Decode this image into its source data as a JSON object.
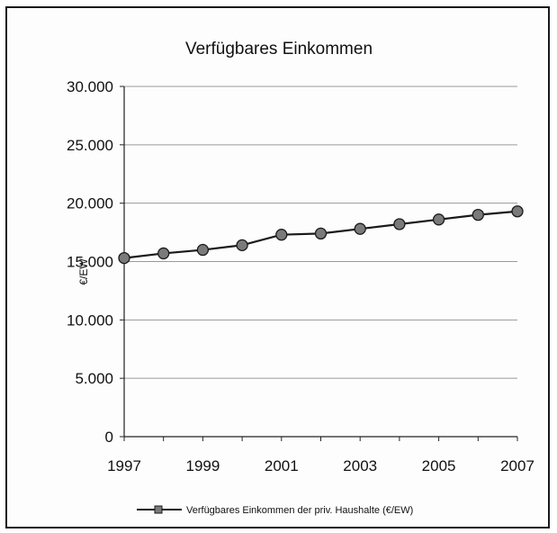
{
  "chart_data": {
    "type": "line",
    "title": "Verfügbares Einkommen",
    "xlabel": "",
    "ylabel": "€/EW",
    "x": [
      1997,
      1998,
      1999,
      2000,
      2001,
      2002,
      2003,
      2004,
      2005,
      2006,
      2007
    ],
    "x_tick_labels": [
      "1997",
      "1999",
      "2001",
      "2003",
      "2005",
      "2007"
    ],
    "y_tick_labels": [
      "0",
      "5.000",
      "10.000",
      "15.000",
      "20.000",
      "25.000",
      "30.000"
    ],
    "ylim": [
      0,
      30000
    ],
    "grid": true,
    "legend_position": "bottom",
    "series": [
      {
        "name": "Verfügbares Einkommen der priv. Haushalte (€/EW)",
        "values": [
          15300,
          15700,
          16000,
          16400,
          17300,
          17400,
          17800,
          18200,
          18600,
          19000,
          19300
        ],
        "color": "#7a7a7a",
        "line_color": "#1a1a1a"
      }
    ]
  }
}
